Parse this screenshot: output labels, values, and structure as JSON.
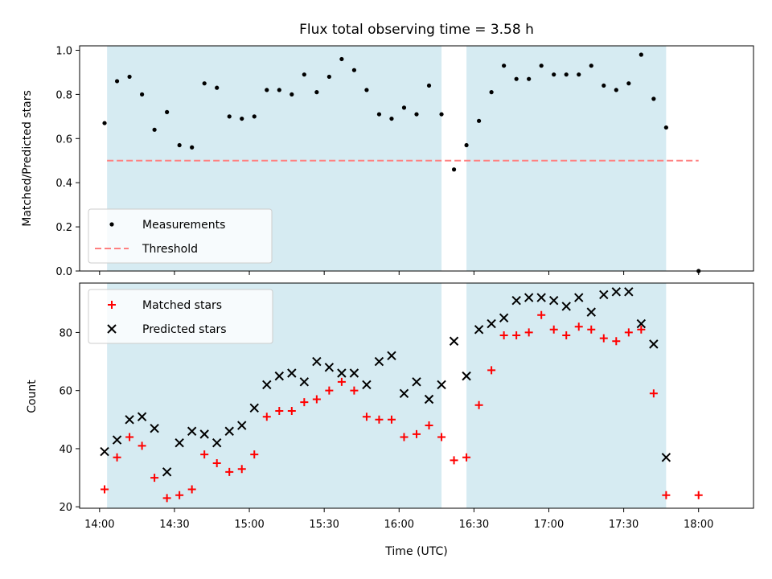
{
  "colors": {
    "shade": "#add8e6",
    "measurement": "#000000",
    "threshold": "#ff8080",
    "matched": "#ff0000",
    "predicted": "#000000"
  },
  "chart_data": [
    {
      "type": "scatter",
      "title": "Flux total observing time = 3.58 h",
      "xlabel": "",
      "ylabel": "Matched/Predicted stars",
      "xlim": [
        "13:52",
        "18:22"
      ],
      "ylim": [
        0.0,
        1.02
      ],
      "x_ticks": [
        "14:00",
        "14:30",
        "15:00",
        "15:30",
        "16:00",
        "16:30",
        "17:00",
        "17:30",
        "18:00"
      ],
      "y_ticks": [
        "0.0",
        "0.2",
        "0.4",
        "0.6",
        "0.8",
        "1.0"
      ],
      "shaded_intervals": [
        [
          "14:03",
          "16:17"
        ],
        [
          "16:27",
          "17:47"
        ]
      ],
      "threshold": 0.5,
      "threshold_range": [
        "14:03",
        "18:00"
      ],
      "legend_position": "lower-left",
      "legend": [
        "Measurements",
        "Threshold"
      ],
      "series": [
        {
          "name": "Measurements",
          "marker": "dot",
          "x": [
            "14:02",
            "14:07",
            "14:12",
            "14:17",
            "14:22",
            "14:27",
            "14:32",
            "14:37",
            "14:42",
            "14:47",
            "14:52",
            "14:57",
            "15:02",
            "15:07",
            "15:12",
            "15:17",
            "15:22",
            "15:27",
            "15:32",
            "15:37",
            "15:42",
            "15:47",
            "15:52",
            "15:57",
            "16:02",
            "16:07",
            "16:12",
            "16:17",
            "16:22",
            "16:27",
            "16:32",
            "16:37",
            "16:42",
            "16:47",
            "16:52",
            "16:57",
            "17:02",
            "17:07",
            "17:12",
            "17:17",
            "17:22",
            "17:27",
            "17:32",
            "17:37",
            "17:42",
            "17:47",
            "18:00"
          ],
          "y": [
            0.67,
            0.86,
            0.88,
            0.8,
            0.64,
            0.72,
            0.57,
            0.56,
            0.85,
            0.83,
            0.7,
            0.69,
            0.7,
            0.82,
            0.82,
            0.8,
            0.89,
            0.81,
            0.88,
            0.96,
            0.91,
            0.82,
            0.71,
            0.69,
            0.74,
            0.71,
            0.84,
            0.71,
            0.46,
            0.57,
            0.68,
            0.81,
            0.93,
            0.87,
            0.87,
            0.93,
            0.89,
            0.89,
            0.89,
            0.93,
            0.84,
            0.82,
            0.85,
            0.98,
            0.78,
            0.65,
            0.0
          ]
        }
      ]
    },
    {
      "type": "scatter",
      "title": "",
      "xlabel": "Time (UTC)",
      "ylabel": "Count",
      "xlim": [
        "13:52",
        "18:22"
      ],
      "ylim": [
        19.5,
        97
      ],
      "x_ticks": [
        "14:00",
        "14:30",
        "15:00",
        "15:30",
        "16:00",
        "16:30",
        "17:00",
        "17:30",
        "18:00"
      ],
      "y_ticks": [
        "20",
        "40",
        "60",
        "80"
      ],
      "shaded_intervals": [
        [
          "14:03",
          "16:17"
        ],
        [
          "16:27",
          "17:47"
        ]
      ],
      "legend_position": "upper-left",
      "legend": [
        "Matched stars",
        "Predicted stars"
      ],
      "series": [
        {
          "name": "Matched stars",
          "marker": "plus",
          "x": [
            "14:02",
            "14:07",
            "14:12",
            "14:17",
            "14:22",
            "14:27",
            "14:32",
            "14:37",
            "14:42",
            "14:47",
            "14:52",
            "14:57",
            "15:02",
            "15:07",
            "15:12",
            "15:17",
            "15:22",
            "15:27",
            "15:32",
            "15:37",
            "15:42",
            "15:47",
            "15:52",
            "15:57",
            "16:02",
            "16:07",
            "16:12",
            "16:17",
            "16:22",
            "16:27",
            "16:32",
            "16:37",
            "16:42",
            "16:47",
            "16:52",
            "16:57",
            "17:02",
            "17:07",
            "17:12",
            "17:17",
            "17:22",
            "17:27",
            "17:32",
            "17:37",
            "17:42",
            "17:47",
            "18:00"
          ],
          "y": [
            26,
            37,
            44,
            41,
            30,
            23,
            24,
            26,
            38,
            35,
            32,
            33,
            38,
            51,
            53,
            53,
            56,
            57,
            60,
            63,
            60,
            51,
            50,
            50,
            44,
            45,
            48,
            44,
            36,
            37,
            55,
            67,
            79,
            79,
            80,
            86,
            81,
            79,
            82,
            81,
            78,
            77,
            80,
            81,
            59,
            24,
            24
          ]
        },
        {
          "name": "Predicted stars",
          "marker": "x",
          "x": [
            "14:02",
            "14:07",
            "14:12",
            "14:17",
            "14:22",
            "14:27",
            "14:32",
            "14:37",
            "14:42",
            "14:47",
            "14:52",
            "14:57",
            "15:02",
            "15:07",
            "15:12",
            "15:17",
            "15:22",
            "15:27",
            "15:32",
            "15:37",
            "15:42",
            "15:47",
            "15:52",
            "15:57",
            "16:02",
            "16:07",
            "16:12",
            "16:17",
            "16:22",
            "16:27",
            "16:32",
            "16:37",
            "16:42",
            "16:47",
            "16:52",
            "16:57",
            "17:02",
            "17:07",
            "17:12",
            "17:17",
            "17:22",
            "17:27",
            "17:32",
            "17:37",
            "17:42",
            "17:47"
          ],
          "y": [
            39,
            43,
            50,
            51,
            47,
            32,
            42,
            46,
            45,
            42,
            46,
            48,
            54,
            62,
            65,
            66,
            63,
            70,
            68,
            66,
            66,
            62,
            70,
            72,
            59,
            63,
            57,
            62,
            77,
            65,
            81,
            83,
            85,
            91,
            92,
            92,
            91,
            89,
            92,
            87,
            93,
            94,
            94,
            83,
            76,
            37
          ]
        }
      ]
    }
  ]
}
